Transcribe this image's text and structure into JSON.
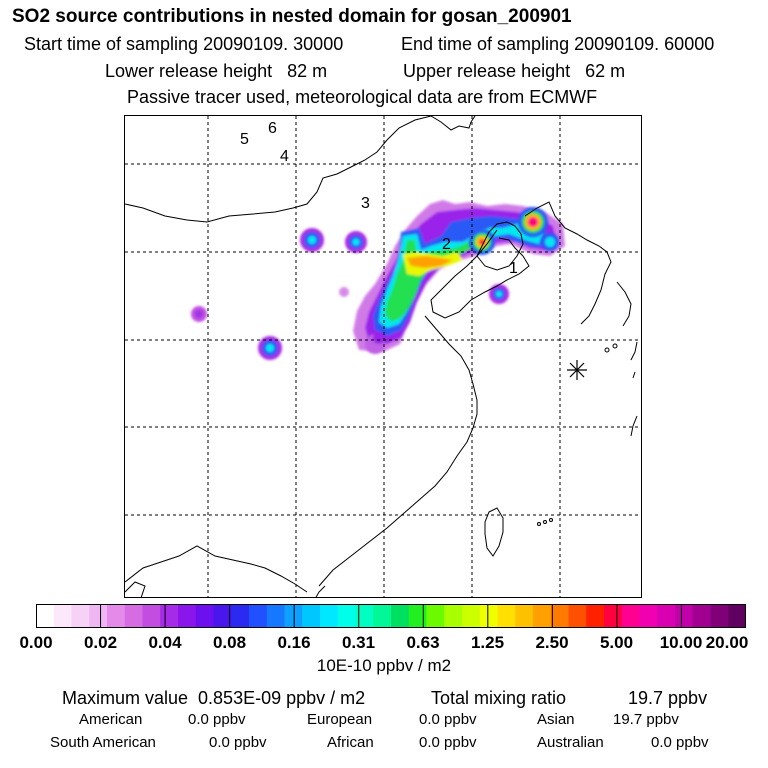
{
  "header": {
    "title": "SO2 source contributions in nested domain for gosan_200901",
    "start_label": "Start time of sampling 20090109. 30000",
    "end_label": "End time of sampling 20090109. 60000",
    "lower_label": "Lower release height   82 m",
    "upper_label": "Upper release height   62 m",
    "tracer_label": "Passive tracer used, meteorological data are from ECMWF"
  },
  "chart_data": {
    "type": "heatmap",
    "title": "SO2 source contributions in nested domain for gosan_200901",
    "colorbar": {
      "tick_labels": [
        "0.00",
        "0.02",
        "0.04",
        "0.08",
        "0.16",
        "0.31",
        "0.63",
        "1.25",
        "2.50",
        "5.00",
        "10.00",
        "20.00"
      ],
      "units": "10E-10 ppbv / m2",
      "colors": [
        "#ffffff",
        "#fbe8fb",
        "#f6d2f6",
        "#efb6f3",
        "#e48ae9",
        "#d66ce2",
        "#c34de0",
        "#a52be6",
        "#8a16ec",
        "#6d10f0",
        "#4a16ee",
        "#2a2af0",
        "#2050ff",
        "#1678ff",
        "#0fa0ff",
        "#00c8ff",
        "#00e8ff",
        "#00ffea",
        "#00ffc0",
        "#00f896",
        "#00e060",
        "#20f020",
        "#6cfa00",
        "#a8ff00",
        "#ccff00",
        "#f0ff00",
        "#ffe000",
        "#ffc000",
        "#ffa000",
        "#ff7a00",
        "#ff5000",
        "#ff2000",
        "#ff0040",
        "#ff0090",
        "#f000b0",
        "#d800b0",
        "#c000a8",
        "#a00090",
        "#800078",
        "#600060"
      ]
    },
    "markers": [
      "1",
      "2",
      "3",
      "4",
      "5",
      "6"
    ],
    "grid": true
  },
  "footer": {
    "max_label": "Maximum value  0.853E-09 ppbv / m2",
    "total_label": "Total mixing ratio",
    "total_value": "19.7 ppbv",
    "regions": [
      {
        "label": "American",
        "value": "0.0 ppbv"
      },
      {
        "label": "European",
        "value": "0.0 ppbv"
      },
      {
        "label": "Asian",
        "value": "19.7 ppbv"
      },
      {
        "label": "South American",
        "value": "0.0 ppbv"
      },
      {
        "label": "African",
        "value": "0.0 ppbv"
      },
      {
        "label": "Australian",
        "value": "0.0 ppbv"
      }
    ]
  }
}
